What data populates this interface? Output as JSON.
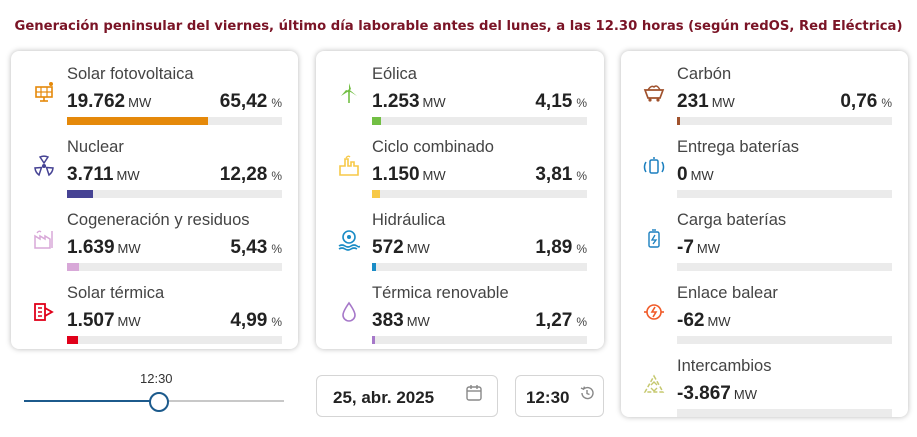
{
  "title": "Generación peninsular del viernes, último día laborable antes del lunes, a las 12.30 horas (según redOS, Red Eléctrica)",
  "units": {
    "power": "MW",
    "percent": "%"
  },
  "columns": [
    {
      "items": [
        {
          "name": "Solar fotovoltaica",
          "value": "19.762",
          "pct": "65,42",
          "fraction": 0.6542,
          "color": "#e5890a",
          "icon": "solar-panel-icon"
        },
        {
          "name": "Nuclear",
          "value": "3.711",
          "pct": "12,28",
          "fraction": 0.1228,
          "color": "#464394",
          "icon": "nuclear-icon"
        },
        {
          "name": "Cogeneración y residuos",
          "value": "1.639",
          "pct": "5,43",
          "fraction": 0.0543,
          "color": "#d8a8d8",
          "icon": "factory-icon"
        },
        {
          "name": "Solar térmica",
          "value": "1.507",
          "pct": "4,99",
          "fraction": 0.0499,
          "color": "#e0001a",
          "icon": "solar-thermal-icon"
        }
      ]
    },
    {
      "items": [
        {
          "name": "Eólica",
          "value": "1.253",
          "pct": "4,15",
          "fraction": 0.0415,
          "color": "#72bf44",
          "icon": "wind-turbine-icon"
        },
        {
          "name": "Ciclo combinado",
          "value": "1.150",
          "pct": "3,81",
          "fraction": 0.0381,
          "color": "#f7c948",
          "icon": "power-plant-icon"
        },
        {
          "name": "Hidráulica",
          "value": "572",
          "pct": "1,89",
          "fraction": 0.0189,
          "color": "#1a8cc6",
          "icon": "hydro-icon"
        },
        {
          "name": "Térmica renovable",
          "value": "383",
          "pct": "1,27",
          "fraction": 0.0127,
          "color": "#a678c9",
          "icon": "drop-icon"
        }
      ]
    },
    {
      "items": [
        {
          "name": "Carbón",
          "value": "231",
          "pct": "0,76",
          "fraction": 0.0076,
          "color": "#a0522d",
          "icon": "coal-cart-icon"
        },
        {
          "name": "Entrega baterías",
          "value": "0",
          "pct": "",
          "fraction": 0,
          "color": "#1b7fbf",
          "icon": "battery-delivery-icon"
        },
        {
          "name": "Carga baterías",
          "value": "-7",
          "pct": "",
          "fraction": 0,
          "color": "#1b7fbf",
          "icon": "battery-charge-icon"
        },
        {
          "name": "Enlace balear",
          "value": "-62",
          "pct": "",
          "fraction": 0,
          "color": "#f05a28",
          "icon": "link-icon"
        },
        {
          "name": "Intercambios",
          "value": "-3.867",
          "pct": "",
          "fraction": 0,
          "color": "#c5c86e",
          "icon": "exchange-icon"
        }
      ]
    }
  ],
  "slider": {
    "time_label": "12:30",
    "fraction": 0.52
  },
  "date_button": {
    "label": "25, abr. 2025",
    "icon": "calendar-icon"
  },
  "time_button": {
    "label": "12:30",
    "icon": "history-icon"
  }
}
